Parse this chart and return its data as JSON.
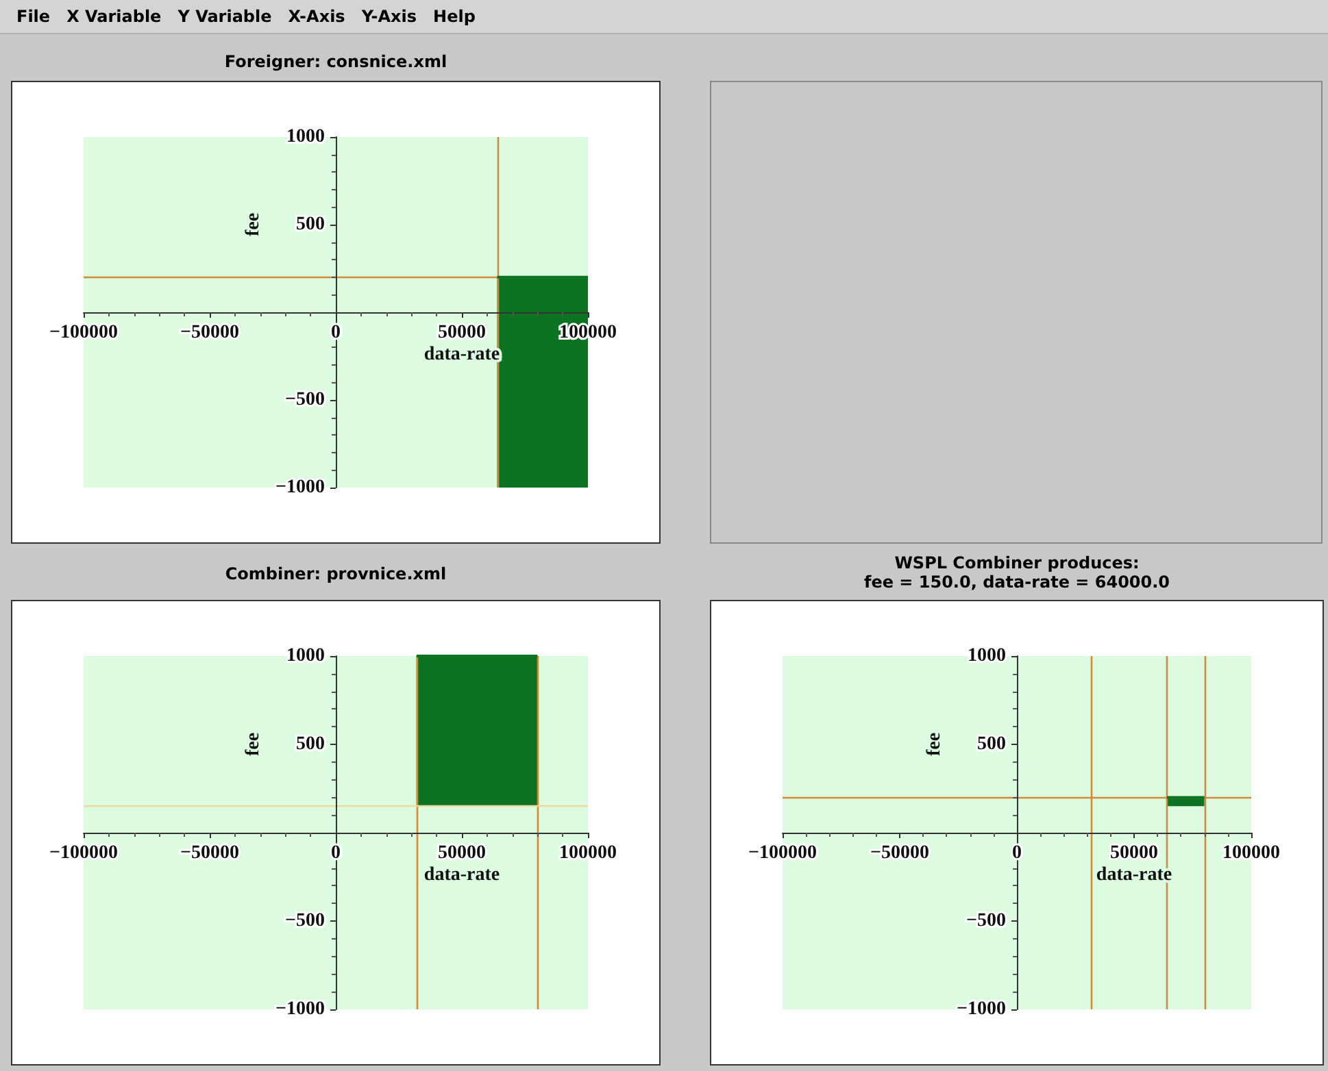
{
  "chart_data": [
    {
      "type": "line",
      "title": "Foreigner: consnice.xml",
      "xlabel": "data-rate",
      "ylabel": "fee",
      "xlim": [
        -100000,
        100000
      ],
      "ylim": [
        -1000,
        1000
      ],
      "xticks": [
        -100000,
        -50000,
        0,
        50000,
        100000
      ],
      "yticks": [
        -1000,
        -500,
        500,
        1000
      ],
      "grid": false,
      "series": [
        {
          "color": "#0b7322",
          "x": [
            64000,
            100000
          ],
          "values": [
            200,
            200
          ],
          "lower": [
            -1000,
            -1000
          ],
          "upper": [
            200,
            200
          ]
        }
      ],
      "ref_lines": [
        {
          "axis": "x",
          "value": 64000,
          "color": "#d2893a"
        },
        {
          "axis": "y",
          "value": 200,
          "color": "#d2893a"
        }
      ]
    },
    {
      "type": "line",
      "title": "Combiner: provnice.xml",
      "xlabel": "data-rate",
      "ylabel": "fee",
      "xlim": [
        -100000,
        100000
      ],
      "ylim": [
        -1000,
        1000
      ],
      "xticks": [
        -100000,
        -50000,
        0,
        50000,
        100000
      ],
      "yticks": [
        -1000,
        -500,
        500,
        1000
      ],
      "grid": false,
      "series": [
        {
          "color": "#0b7322",
          "x": [
            32000,
            80000
          ],
          "values": [
            1000,
            1000
          ],
          "lower": [
            150,
            150
          ],
          "upper": [
            1000,
            1000
          ]
        }
      ],
      "ref_lines": [
        {
          "axis": "x",
          "value": 32000,
          "color": "#d2893a"
        },
        {
          "axis": "x",
          "value": 80000,
          "color": "#d2893a"
        },
        {
          "axis": "y",
          "value": 150,
          "color": "#eed6a0"
        }
      ]
    },
    {
      "type": "line",
      "title": "WSPL Combiner produces:",
      "subtitle": "fee = 150.0, data-rate = 64000.0",
      "xlabel": "data-rate",
      "ylabel": "fee",
      "xlim": [
        -100000,
        100000
      ],
      "ylim": [
        -1000,
        1000
      ],
      "xticks": [
        -100000,
        -50000,
        0,
        50000,
        100000
      ],
      "yticks": [
        -1000,
        -500,
        500,
        1000
      ],
      "grid": false,
      "series": [
        {
          "color": "#0b7322",
          "x": [
            64000,
            80000
          ],
          "values": [
            200,
            200
          ],
          "lower": [
            150,
            150
          ],
          "upper": [
            200,
            200
          ]
        }
      ],
      "ref_lines": [
        {
          "axis": "x",
          "value": 32000,
          "color": "#d2893a"
        },
        {
          "axis": "x",
          "value": 64000,
          "color": "#d2893a"
        },
        {
          "axis": "x",
          "value": 80000,
          "color": "#d2893a"
        },
        {
          "axis": "y",
          "value": 200,
          "color": "#d2893a"
        }
      ]
    },
    {
      "type": "other",
      "annotations": [
        "File",
        "X Variable",
        "Y Variable",
        "X-Axis",
        "Y-Axis",
        "Help"
      ]
    }
  ]
}
